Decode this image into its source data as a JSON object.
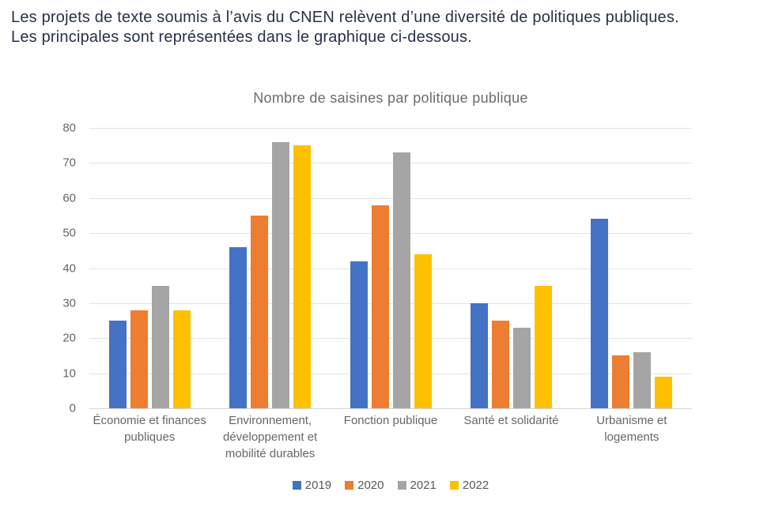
{
  "intro": {
    "line1": "Les projets de texte soumis à l’avis du CNEN relèvent d’une diversité de politiques publiques.",
    "line2": "Les principales sont représentées dans le graphique ci-dessous."
  },
  "chart_data": {
    "type": "bar",
    "title": "Nombre de saisines par politique publique",
    "categories": [
      "Économie et finances publiques",
      "Environnement, développement et mobilité durables",
      "Fonction publique",
      "Santé et solidarité",
      "Urbanisme et logements"
    ],
    "series": [
      {
        "name": "2019",
        "color": "#4472C4",
        "values": [
          25,
          46,
          42,
          30,
          54
        ]
      },
      {
        "name": "2020",
        "color": "#ED7D31",
        "values": [
          28,
          55,
          58,
          25,
          15
        ]
      },
      {
        "name": "2021",
        "color": "#A5A5A5",
        "values": [
          35,
          76,
          73,
          23,
          16
        ]
      },
      {
        "name": "2022",
        "color": "#FFC000",
        "values": [
          28,
          75,
          44,
          35,
          9
        ]
      }
    ],
    "xlabel": "",
    "ylabel": "",
    "ylim": [
      0,
      80
    ],
    "y_ticks": [
      0,
      10,
      20,
      30,
      40,
      50,
      60,
      70,
      80
    ],
    "grid": true,
    "legend_position": "bottom"
  },
  "colors": {
    "intro_text": "#253246",
    "chart_text": "#666666",
    "gridline": "#e3e3e3",
    "axis_line": "#d5d5d5"
  }
}
